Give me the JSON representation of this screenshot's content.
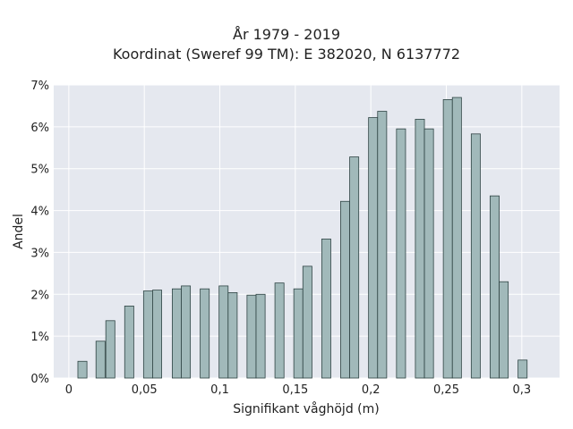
{
  "chart_data": {
    "type": "bar",
    "title_lines": [
      "År 1979 - 2019",
      "Koordinat (Sweref 99 TM): E 382020, N 6137772"
    ],
    "xlabel": "Signifikant våghöjd (m)",
    "ylabel": "Andel",
    "xlim": [
      -0.01,
      0.325
    ],
    "ylim": [
      0,
      7
    ],
    "x_ticks": [
      {
        "value": 0,
        "label": "0"
      },
      {
        "value": 0.05,
        "label": "0,05"
      },
      {
        "value": 0.1,
        "label": "0,1"
      },
      {
        "value": 0.15,
        "label": "0,15"
      },
      {
        "value": 0.2,
        "label": "0,2"
      },
      {
        "value": 0.25,
        "label": "0,25"
      },
      {
        "value": 0.3,
        "label": "0,3"
      }
    ],
    "y_ticks": [
      {
        "value": 0,
        "label": "0%"
      },
      {
        "value": 1,
        "label": "1%"
      },
      {
        "value": 2,
        "label": "2%"
      },
      {
        "value": 3,
        "label": "3%"
      },
      {
        "value": 4,
        "label": "4%"
      },
      {
        "value": 5,
        "label": "5%"
      },
      {
        "value": 6,
        "label": "6%"
      },
      {
        "value": 7,
        "label": "7%"
      }
    ],
    "bar_width": 0.006,
    "bars": [
      {
        "x": 0.009,
        "value": 0.4
      },
      {
        "x": 0.021,
        "value": 0.88
      },
      {
        "x": 0.0275,
        "value": 1.37
      },
      {
        "x": 0.04,
        "value": 1.72
      },
      {
        "x": 0.0525,
        "value": 2.08
      },
      {
        "x": 0.0585,
        "value": 2.1
      },
      {
        "x": 0.0715,
        "value": 2.13
      },
      {
        "x": 0.0775,
        "value": 2.2
      },
      {
        "x": 0.09,
        "value": 2.13
      },
      {
        "x": 0.1025,
        "value": 2.2
      },
      {
        "x": 0.1085,
        "value": 2.04
      },
      {
        "x": 0.121,
        "value": 1.98
      },
      {
        "x": 0.127,
        "value": 2.0
      },
      {
        "x": 0.1395,
        "value": 2.27
      },
      {
        "x": 0.152,
        "value": 2.13
      },
      {
        "x": 0.158,
        "value": 2.67
      },
      {
        "x": 0.1705,
        "value": 3.32
      },
      {
        "x": 0.183,
        "value": 4.22
      },
      {
        "x": 0.189,
        "value": 5.28
      },
      {
        "x": 0.2015,
        "value": 6.22
      },
      {
        "x": 0.2075,
        "value": 6.37
      },
      {
        "x": 0.22,
        "value": 5.95
      },
      {
        "x": 0.2325,
        "value": 6.18
      },
      {
        "x": 0.2385,
        "value": 5.95
      },
      {
        "x": 0.251,
        "value": 6.65
      },
      {
        "x": 0.257,
        "value": 6.7
      },
      {
        "x": 0.2695,
        "value": 5.83
      },
      {
        "x": 0.282,
        "value": 4.35
      },
      {
        "x": 0.288,
        "value": 2.3
      },
      {
        "x": 0.3005,
        "value": 0.43
      }
    ],
    "colors": {
      "plot_bg": "#e5e8ef",
      "bar_fill": "#a1b9ba",
      "bar_stroke": "#2f4444",
      "grid": "#ffffff"
    },
    "grid": true
  }
}
